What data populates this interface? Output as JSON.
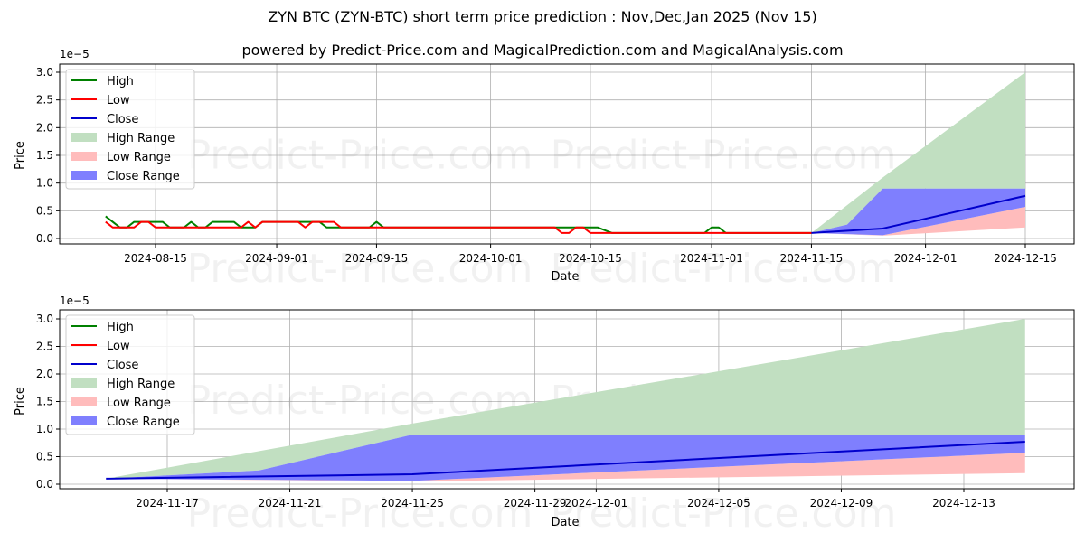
{
  "title": "ZYN BTC (ZYN-BTC) short term price prediction : Nov,Dec,Jan 2025 (Nov 15)",
  "subtitle": "powered by Predict-Price.com and MagicalPrediction.com and MagicalAnalysis.com",
  "watermark": "Predict-Price.com",
  "colors": {
    "high": "#008000",
    "low": "#ff0000",
    "close": "#0000cc",
    "high_range": "#c1dfc1",
    "low_range": "#ffbcbc",
    "close_range": "#7f7ffe"
  },
  "legend": [
    "High",
    "Low",
    "Close",
    "High Range",
    "Low Range",
    "Close Range"
  ],
  "chart_data": [
    {
      "type": "line",
      "title": "ZYN BTC (ZYN-BTC) short term price prediction : Nov,Dec,Jan 2025 (Nov 15)",
      "xlabel": "Date",
      "ylabel": "Price",
      "y_scale_label": "1e−5",
      "ylim": [
        0,
        3.0
      ],
      "yticks": [
        "0.0",
        "0.5",
        "1.0",
        "1.5",
        "2.0",
        "2.5",
        "3.0"
      ],
      "xticks": [
        "2024-08-15",
        "2024-09-01",
        "2024-09-15",
        "2024-10-01",
        "2024-10-15",
        "2024-11-01",
        "2024-11-15",
        "2024-12-01",
        "2024-12-15"
      ],
      "grid": true,
      "legend_position": "upper left",
      "series": [
        {
          "name": "High",
          "points": [
            [
              "2024-08-08",
              0.4
            ],
            [
              "2024-08-10",
              0.2
            ],
            [
              "2024-08-11",
              0.2
            ],
            [
              "2024-08-12",
              0.3
            ],
            [
              "2024-08-16",
              0.3
            ],
            [
              "2024-08-17",
              0.2
            ],
            [
              "2024-08-19",
              0.2
            ],
            [
              "2024-08-20",
              0.3
            ],
            [
              "2024-08-21",
              0.2
            ],
            [
              "2024-08-22",
              0.2
            ],
            [
              "2024-08-23",
              0.3
            ],
            [
              "2024-08-26",
              0.3
            ],
            [
              "2024-08-27",
              0.2
            ],
            [
              "2024-08-29",
              0.2
            ],
            [
              "2024-08-30",
              0.3
            ],
            [
              "2024-09-07",
              0.3
            ],
            [
              "2024-09-08",
              0.2
            ],
            [
              "2024-09-14",
              0.2
            ],
            [
              "2024-09-15",
              0.3
            ],
            [
              "2024-09-16",
              0.2
            ],
            [
              "2024-10-10",
              0.2
            ],
            [
              "2024-10-16",
              0.2
            ],
            [
              "2024-10-18",
              0.1
            ],
            [
              "2024-10-31",
              0.1
            ],
            [
              "2024-11-01",
              0.2
            ],
            [
              "2024-11-02",
              0.2
            ],
            [
              "2024-11-03",
              0.1
            ],
            [
              "2024-11-15",
              0.1
            ]
          ]
        },
        {
          "name": "Low",
          "points": [
            [
              "2024-08-08",
              0.3
            ],
            [
              "2024-08-09",
              0.2
            ],
            [
              "2024-08-12",
              0.2
            ],
            [
              "2024-08-13",
              0.3
            ],
            [
              "2024-08-14",
              0.3
            ],
            [
              "2024-08-15",
              0.2
            ],
            [
              "2024-08-27",
              0.2
            ],
            [
              "2024-08-28",
              0.3
            ],
            [
              "2024-08-29",
              0.2
            ],
            [
              "2024-08-30",
              0.3
            ],
            [
              "2024-09-04",
              0.3
            ],
            [
              "2024-09-05",
              0.2
            ],
            [
              "2024-09-06",
              0.3
            ],
            [
              "2024-09-09",
              0.3
            ],
            [
              "2024-09-10",
              0.2
            ],
            [
              "2024-10-10",
              0.2
            ],
            [
              "2024-10-11",
              0.1
            ],
            [
              "2024-10-12",
              0.1
            ],
            [
              "2024-10-13",
              0.2
            ],
            [
              "2024-10-14",
              0.2
            ],
            [
              "2024-10-15",
              0.1
            ],
            [
              "2024-11-15",
              0.1
            ]
          ]
        },
        {
          "name": "Close",
          "points": [
            [
              "2024-11-15",
              0.1
            ],
            [
              "2024-11-25",
              0.18
            ],
            [
              "2024-12-15",
              0.77
            ]
          ]
        },
        {
          "name": "High Range",
          "upper": [
            [
              "2024-11-15",
              0.1
            ],
            [
              "2024-11-25",
              1.1
            ],
            [
              "2024-12-15",
              3.0
            ]
          ],
          "lower": [
            [
              "2024-11-15",
              0.1
            ],
            [
              "2024-11-20",
              0.25
            ],
            [
              "2024-11-25",
              0.9
            ],
            [
              "2024-12-15",
              0.9
            ]
          ]
        },
        {
          "name": "Close Range",
          "upper": [
            [
              "2024-11-15",
              0.1
            ],
            [
              "2024-11-20",
              0.25
            ],
            [
              "2024-11-25",
              0.9
            ],
            [
              "2024-12-15",
              0.9
            ]
          ],
          "lower": [
            [
              "2024-11-15",
              0.1
            ],
            [
              "2024-11-25",
              0.06
            ],
            [
              "2024-12-15",
              0.57
            ]
          ]
        },
        {
          "name": "Low Range",
          "upper": [
            [
              "2024-11-15",
              0.1
            ],
            [
              "2024-11-25",
              0.06
            ],
            [
              "2024-12-15",
              0.57
            ]
          ],
          "lower": [
            [
              "2024-11-15",
              0.1
            ],
            [
              "2024-11-25",
              0.05
            ],
            [
              "2024-12-15",
              0.2
            ]
          ]
        }
      ]
    },
    {
      "type": "area",
      "title": "",
      "xlabel": "Date",
      "ylabel": "Price",
      "y_scale_label": "1e−5",
      "ylim": [
        0,
        3.0
      ],
      "yticks": [
        "0.0",
        "0.5",
        "1.0",
        "1.5",
        "2.0",
        "2.5",
        "3.0"
      ],
      "xticks": [
        "2024-11-17",
        "2024-11-21",
        "2024-11-25",
        "2024-11-29",
        "2024-12-01",
        "2024-12-05",
        "2024-12-09",
        "2024-12-13"
      ],
      "grid": true,
      "legend_position": "upper left",
      "series": [
        {
          "name": "Close",
          "points": [
            [
              "2024-11-15",
              0.1
            ],
            [
              "2024-11-25",
              0.18
            ],
            [
              "2024-12-15",
              0.77
            ]
          ]
        },
        {
          "name": "High Range",
          "upper": [
            [
              "2024-11-15",
              0.1
            ],
            [
              "2024-11-25",
              1.1
            ],
            [
              "2024-12-15",
              3.0
            ]
          ],
          "lower": [
            [
              "2024-11-15",
              0.1
            ],
            [
              "2024-11-20",
              0.25
            ],
            [
              "2024-11-25",
              0.9
            ],
            [
              "2024-12-15",
              0.9
            ]
          ]
        },
        {
          "name": "Close Range",
          "upper": [
            [
              "2024-11-15",
              0.1
            ],
            [
              "2024-11-20",
              0.25
            ],
            [
              "2024-11-25",
              0.9
            ],
            [
              "2024-12-15",
              0.9
            ]
          ],
          "lower": [
            [
              "2024-11-15",
              0.1
            ],
            [
              "2024-11-25",
              0.06
            ],
            [
              "2024-12-15",
              0.57
            ]
          ]
        },
        {
          "name": "Low Range",
          "upper": [
            [
              "2024-11-15",
              0.1
            ],
            [
              "2024-11-25",
              0.06
            ],
            [
              "2024-12-15",
              0.57
            ]
          ],
          "lower": [
            [
              "2024-11-15",
              0.1
            ],
            [
              "2024-11-25",
              0.05
            ],
            [
              "2024-12-15",
              0.2
            ]
          ]
        }
      ]
    }
  ]
}
